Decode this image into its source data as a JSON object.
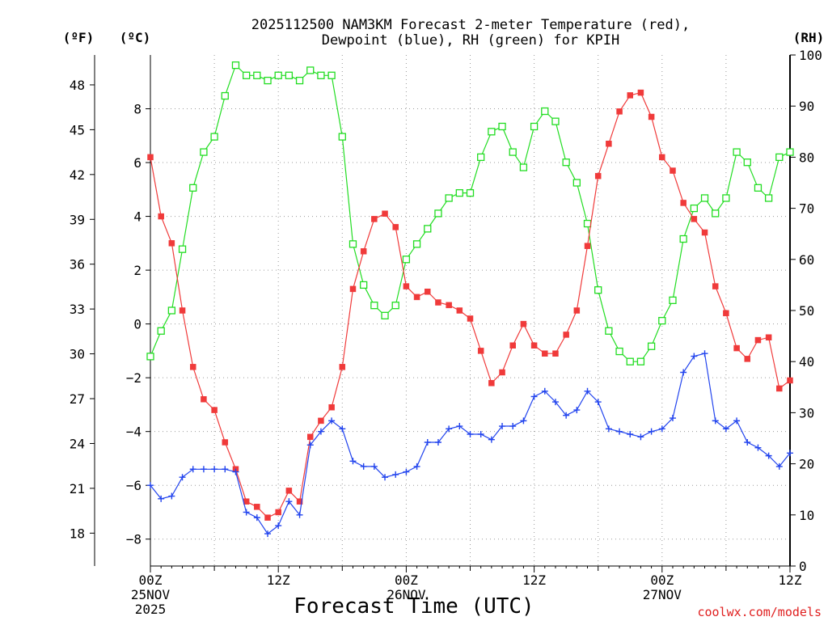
{
  "chart_data": {
    "type": "line",
    "title": [
      "2025112500 NAM3KM Forecast 2-meter Temperature (red),",
      "Dewpoint (blue), RH (green) for KPIH"
    ],
    "xlabel": "Forecast Time (UTC)",
    "credit": "coolwx.com/models",
    "units": {
      "left_f": "(ºF)",
      "left_c": "(ºC)",
      "right": "(RH)"
    },
    "x_range_hours": [
      0,
      60
    ],
    "x_ticks": [
      {
        "hour": 0,
        "lines": [
          "00Z",
          "25NOV",
          "2025"
        ]
      },
      {
        "hour": 12,
        "lines": [
          "12Z"
        ]
      },
      {
        "hour": 24,
        "lines": [
          "00Z",
          "26NOV"
        ]
      },
      {
        "hour": 36,
        "lines": [
          "12Z"
        ]
      },
      {
        "hour": 48,
        "lines": [
          "00Z",
          "27NOV"
        ]
      },
      {
        "hour": 60,
        "lines": [
          "12Z"
        ]
      }
    ],
    "y_celsius": {
      "range": [
        -9,
        10
      ],
      "ticks": [
        "8",
        "6",
        "4",
        "2",
        "0",
        "−2",
        "−4",
        "−6",
        "−8"
      ],
      "tick_values": [
        8,
        6,
        4,
        2,
        0,
        -2,
        -4,
        -6,
        -8
      ]
    },
    "y_fahrenheit": {
      "ticks": [
        "48",
        "45",
        "42",
        "39",
        "36",
        "33",
        "30",
        "27",
        "24",
        "21",
        "18"
      ],
      "tick_values": [
        48,
        45,
        42,
        39,
        36,
        33,
        30,
        27,
        24,
        21,
        18
      ]
    },
    "y_rh": {
      "range": [
        0,
        100
      ],
      "ticks": [
        "100",
        "90",
        "80",
        "70",
        "60",
        "50",
        "40",
        "30",
        "20",
        "10",
        "0"
      ],
      "tick_values": [
        100,
        90,
        80,
        70,
        60,
        50,
        40,
        30,
        20,
        10,
        0
      ]
    },
    "grid": true,
    "series": [
      {
        "name": "2-meter Temperature",
        "unit": "C",
        "axis": "celsius",
        "color": "#f03a3a",
        "marker": "filled-square",
        "values": [
          6.2,
          4.0,
          3.0,
          0.5,
          -1.6,
          -2.8,
          -3.2,
          -4.4,
          -5.4,
          -6.6,
          -6.8,
          -7.2,
          -7.0,
          -6.2,
          -6.6,
          -4.2,
          -3.6,
          -3.1,
          -1.6,
          1.3,
          2.7,
          3.9,
          4.1,
          3.6,
          1.4,
          1.0,
          1.2,
          0.8,
          0.7,
          0.5,
          0.2,
          -1.0,
          -2.2,
          -1.8,
          -0.8,
          -0.0,
          -0.8,
          -1.1,
          -1.1,
          -0.4,
          0.5,
          2.9,
          5.5,
          6.7,
          7.9,
          8.5,
          8.6,
          7.7,
          6.2,
          5.7,
          4.5,
          3.9,
          3.4,
          1.4,
          0.4,
          -0.9,
          -1.3,
          -0.6,
          -0.5,
          -2.4,
          -2.1
        ]
      },
      {
        "name": "Dewpoint",
        "unit": "C",
        "axis": "celsius",
        "color": "#2244ee",
        "marker": "plus",
        "values": [
          -6.0,
          -6.5,
          -6.4,
          -5.7,
          -5.4,
          -5.4,
          -5.4,
          -5.4,
          -5.5,
          -7.0,
          -7.2,
          -7.8,
          -7.5,
          -6.6,
          -7.1,
          -4.5,
          -4.0,
          -3.6,
          -3.9,
          -5.1,
          -5.3,
          -5.3,
          -5.7,
          -5.6,
          -5.5,
          -5.3,
          -4.4,
          -4.4,
          -3.9,
          -3.8,
          -4.1,
          -4.1,
          -4.3,
          -3.8,
          -3.8,
          -3.6,
          -2.7,
          -2.5,
          -2.9,
          -3.4,
          -3.2,
          -2.5,
          -2.9,
          -3.9,
          -4.0,
          -4.1,
          -4.2,
          -4.0,
          -3.9,
          -3.5,
          -1.8,
          -1.2,
          -1.1,
          -3.6,
          -3.9,
          -3.6,
          -4.4,
          -4.6,
          -4.9,
          -5.3,
          -4.8
        ]
      },
      {
        "name": "RH",
        "unit": "%",
        "axis": "rh",
        "color": "#22dd22",
        "marker": "open-square",
        "values": [
          41,
          46,
          50,
          62,
          74,
          81,
          84,
          92,
          98,
          96,
          96,
          95,
          96,
          96,
          95,
          97,
          96,
          96,
          84,
          63,
          55,
          51,
          49,
          51,
          60,
          63,
          66,
          69,
          72,
          73,
          73,
          80,
          85,
          86,
          81,
          78,
          86,
          89,
          87,
          79,
          75,
          67,
          54,
          46,
          42,
          40,
          40,
          43,
          48,
          52,
          64,
          70,
          72,
          69,
          72,
          81,
          79,
          74,
          72,
          80,
          81
        ]
      }
    ]
  }
}
